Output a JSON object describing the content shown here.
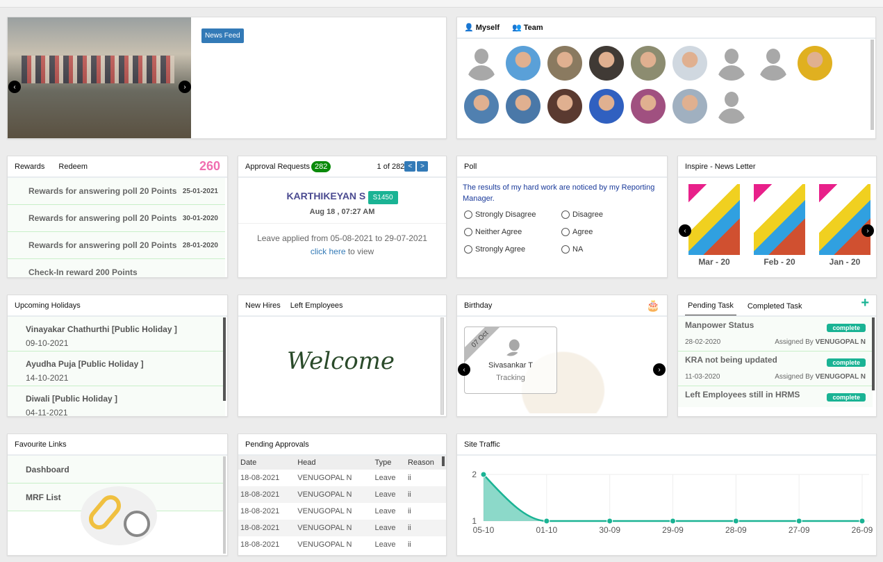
{
  "news": {
    "button": "News Feed"
  },
  "team": {
    "tabs": [
      "Myself",
      "Team"
    ],
    "avatars": [
      "generic",
      "#5aa0d8",
      "#8a7a60",
      "#403a35",
      "#8c8c70",
      "#d0d8e0",
      "generic",
      "generic",
      "#e0b020",
      "#5080b0",
      "#4a78a8",
      "#5a3a30",
      "#3060c0",
      "#a05080",
      "#a0b0c0",
      "generic"
    ]
  },
  "rewards": {
    "tabs": [
      "Rewards",
      "Redeem"
    ],
    "points": "260",
    "items": [
      {
        "text": "Rewards for answering poll 20 Points",
        "date": "25-01-2021"
      },
      {
        "text": "Rewards for answering poll 20 Points",
        "date": "30-01-2020"
      },
      {
        "text": "Rewards for answering poll 20 Points",
        "date": "28-01-2020"
      },
      {
        "text": "Check-In reward 200 Points",
        "date": ""
      }
    ]
  },
  "approval": {
    "title": "Approval Requests",
    "count": "282",
    "pager": "1 of 282",
    "prev": "<",
    "next": ">",
    "name": "KARTHIKEYAN S",
    "code": "S1450",
    "time": "Aug 18 , 07:27 AM",
    "desc": "Leave applied from 05-08-2021 to 29-07-2021",
    "link": "click here",
    "link_suffix": " to view"
  },
  "poll": {
    "title": "Poll",
    "question": "The results of my hard work are noticed by my Reporting Manager.",
    "options": [
      "Strongly Disagree",
      "Disagree",
      "Neither Agree",
      "Agree",
      "Strongly Agree",
      "NA"
    ]
  },
  "newsletter": {
    "title": "Inspire - News Letter",
    "items": [
      "Mar - 20",
      "Feb - 20",
      "Jan - 20"
    ],
    "brand": "inspire"
  },
  "holidays": {
    "title": "Upcoming Holidays",
    "items": [
      {
        "name": "Vinayakar Chathurthi [Public Holiday ]",
        "date": "09-10-2021"
      },
      {
        "name": "Ayudha Puja [Public Holiday ]",
        "date": "14-10-2021"
      },
      {
        "name": "Diwali [Public Holiday ]",
        "date": "04-11-2021"
      }
    ]
  },
  "hires": {
    "tabs": [
      "New Hires",
      "Left Employees"
    ],
    "welcome": "Welcome"
  },
  "birthday": {
    "title": "Birthday",
    "date": "07 Oct",
    "name": "Sivasankar T",
    "dept": "Tracking"
  },
  "tasks": {
    "tabs": [
      "Pending Task",
      "Completed Task"
    ],
    "add": "+",
    "items": [
      {
        "title": "Manpower Status",
        "status": "complete",
        "date": "28-02-2020",
        "by_label": "Assigned By",
        "by": "VENUGOPAL N"
      },
      {
        "title": "KRA not being updated",
        "status": "complete",
        "date": "11-03-2020",
        "by_label": "Assigned By",
        "by": "VENUGOPAL N"
      },
      {
        "title": "Left Employees still in HRMS",
        "status": "complete",
        "date": "",
        "by_label": "",
        "by": ""
      }
    ]
  },
  "links": {
    "title": "Favourite Links",
    "items": [
      "Dashboard",
      "MRF List"
    ]
  },
  "pending": {
    "title": "Pending Approvals",
    "headers": [
      "Date",
      "Head",
      "Type",
      "Reason"
    ],
    "rows": [
      [
        "18-08-2021",
        "VENUGOPAL N",
        "Leave",
        "ii"
      ],
      [
        "18-08-2021",
        "VENUGOPAL N",
        "Leave",
        "ii"
      ],
      [
        "18-08-2021",
        "VENUGOPAL N",
        "Leave",
        "ii"
      ],
      [
        "18-08-2021",
        "VENUGOPAL N",
        "Leave",
        "ii"
      ],
      [
        "18-08-2021",
        "VENUGOPAL N",
        "Leave",
        "ii"
      ]
    ]
  },
  "traffic": {
    "title": "Site Traffic"
  },
  "chart_data": {
    "type": "area",
    "categories": [
      "05-10",
      "01-10",
      "30-09",
      "29-09",
      "28-09",
      "27-09",
      "26-09"
    ],
    "values": [
      2,
      1,
      1,
      1,
      1,
      1,
      1
    ],
    "ylim": [
      1,
      2
    ],
    "yticks": [
      "1",
      "2"
    ],
    "grid": true,
    "color": "#1ab394"
  }
}
